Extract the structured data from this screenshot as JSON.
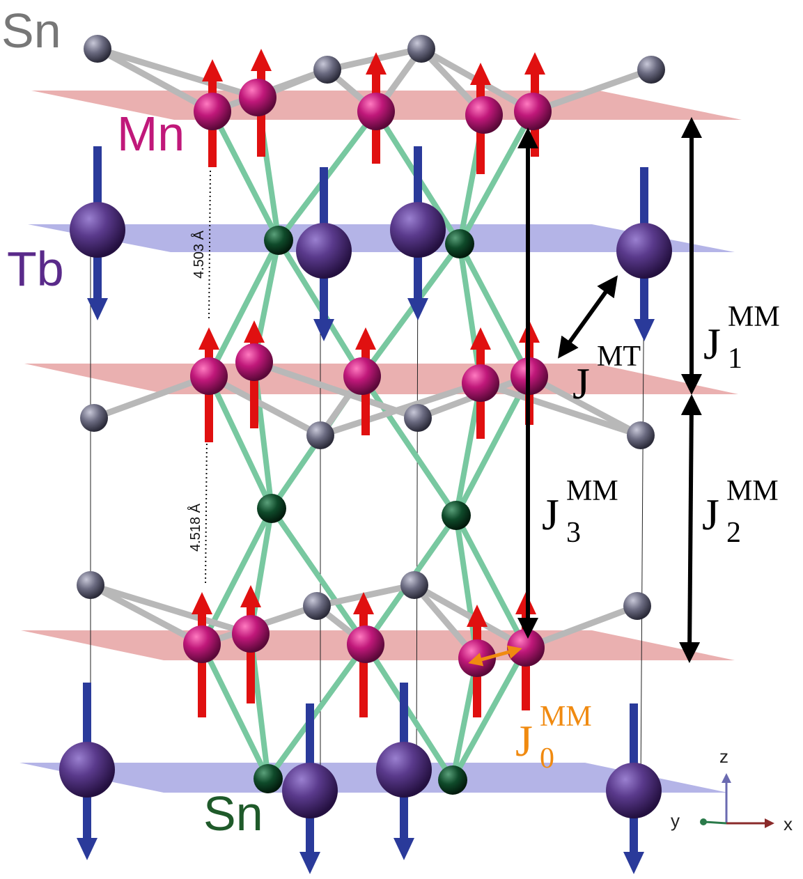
{
  "labels": {
    "sn_top": "Sn",
    "mn": "Mn",
    "tb": "Tb",
    "sn_bottom": "Sn",
    "dist_upper": "4.503 Å",
    "dist_lower": "4.518 Å"
  },
  "couplings": {
    "j1": {
      "main": "J",
      "sup": "MM",
      "sub": "1"
    },
    "j2": {
      "main": "J",
      "sup": "MM",
      "sub": "2"
    },
    "j3": {
      "main": "J",
      "sup": "MM",
      "sub": "3"
    },
    "j0": {
      "main": "J",
      "sup": "MM",
      "sub": "0"
    },
    "jmt": {
      "main": "J",
      "sup": "MT"
    }
  },
  "axes": {
    "z": "z",
    "y": "y",
    "x": "x"
  },
  "colors": {
    "mn_atom": "#c0187a",
    "tb_atom": "#5a3a8c",
    "sn_kagome": "#6a6a80",
    "sn_chain": "#0f4a2a",
    "spin_up": "#e01010",
    "spin_down": "#2a3a9a",
    "bond_green": "#78c8a0",
    "bond_grey": "#b8b8b8",
    "plane_red": "#d87070",
    "plane_blue": "#6a6ad0",
    "sn_label_grey": "#777777",
    "sn_label_green": "#1f5a2a",
    "mn_label": "#c0187a",
    "tb_label": "#5a2a8a",
    "j0_color": "#f08a10"
  }
}
